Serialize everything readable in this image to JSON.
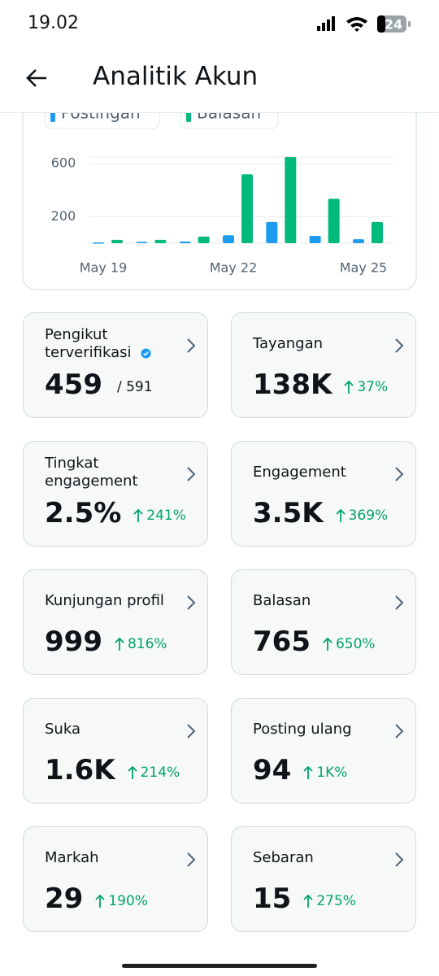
{
  "status_bar": {
    "time": "19.02",
    "battery": "24"
  },
  "header": {
    "title": "Analitik Akun"
  },
  "chart_data": {
    "type": "bar",
    "categories": [
      "May 19",
      null,
      null,
      "May 22",
      null,
      null,
      "May 25"
    ],
    "series": [
      {
        "name": "Postingan",
        "color": "#1d9bf0",
        "values": [
          5,
          10,
          12,
          60,
          160,
          55,
          30
        ]
      },
      {
        "name": "Balasan",
        "color": "#00ba7c",
        "values": [
          25,
          25,
          50,
          520,
          650,
          335,
          160
        ]
      }
    ],
    "ylim": [
      0,
      650
    ],
    "yticks": [
      200,
      600
    ],
    "grid": true
  },
  "cards": [
    {
      "title": "Pengikut terverifikasi",
      "value": "459",
      "detail": "/ 591",
      "verified": true
    },
    {
      "title": "Tayangan",
      "value": "138K",
      "change": "37%"
    },
    {
      "title": "Tingkat engagement",
      "value": "2.5%",
      "change": "241%"
    },
    {
      "title": "Engagement",
      "value": "3.5K",
      "change": "369%"
    },
    {
      "title": "Kunjungan profil",
      "value": "999",
      "change": "816%"
    },
    {
      "title": "Balasan",
      "value": "765",
      "change": "650%"
    },
    {
      "title": "Suka",
      "value": "1.6K",
      "change": "214%"
    },
    {
      "title": "Posting ulang",
      "value": "94",
      "change": "1K%"
    },
    {
      "title": "Markah",
      "value": "29",
      "change": "190%"
    },
    {
      "title": "Sebaran",
      "value": "15",
      "change": "275%"
    }
  ]
}
